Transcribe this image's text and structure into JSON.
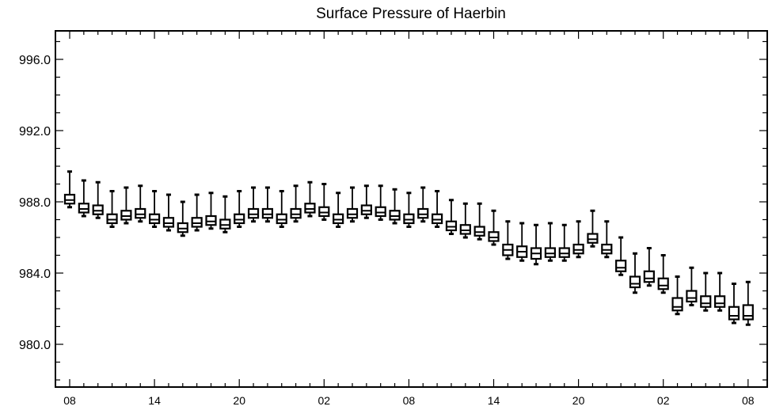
{
  "chart_data": {
    "type": "box",
    "title": "Surface Pressure of Haerbin",
    "xlabel": "",
    "ylabel": "",
    "ylim": [
      977.6,
      997.6
    ],
    "yticks": [
      {
        "value": 980.0,
        "label": "980.0"
      },
      {
        "value": 984.0,
        "label": "984.0"
      },
      {
        "value": 988.0,
        "label": "988.0"
      },
      {
        "value": 992.0,
        "label": "992.0"
      },
      {
        "value": 996.0,
        "label": "996.0"
      }
    ],
    "xticks": [
      {
        "index": 0,
        "label": "08"
      },
      {
        "index": 6,
        "label": "14"
      },
      {
        "index": 12,
        "label": "20"
      },
      {
        "index": 18,
        "label": "02"
      },
      {
        "index": 24,
        "label": "08"
      },
      {
        "index": 30,
        "label": "14"
      },
      {
        "index": 36,
        "label": "20"
      },
      {
        "index": 42,
        "label": "02"
      },
      {
        "index": 48,
        "label": "08"
      }
    ],
    "grid": false,
    "series": [
      {
        "median": [
          988.1,
          987.6,
          987.5,
          987.0,
          987.2,
          987.3,
          987.0,
          986.8,
          986.5,
          986.8,
          986.9,
          986.7,
          987.0,
          987.3,
          987.3,
          987.0,
          987.3,
          987.6,
          987.4,
          987.0,
          987.3,
          987.5,
          987.4,
          987.2,
          987.0,
          987.3,
          987.0,
          986.6,
          986.4,
          986.3,
          986.0,
          985.3,
          985.2,
          985.1,
          985.1,
          985.1,
          985.3,
          985.9,
          985.3,
          984.3,
          983.4,
          983.7,
          983.3,
          982.1,
          982.6,
          982.3,
          982.3,
          981.6,
          981.6
        ],
        "q1": [
          987.9,
          987.4,
          987.3,
          986.8,
          987.0,
          987.1,
          986.8,
          986.6,
          986.3,
          986.6,
          986.7,
          986.5,
          986.8,
          987.1,
          987.1,
          986.8,
          987.1,
          987.4,
          987.2,
          986.8,
          987.1,
          987.3,
          987.2,
          987.0,
          986.8,
          987.1,
          986.8,
          986.4,
          986.2,
          986.1,
          985.8,
          985.0,
          984.9,
          984.8,
          984.9,
          984.9,
          985.1,
          985.7,
          985.1,
          984.1,
          983.2,
          983.5,
          983.1,
          981.9,
          982.4,
          982.1,
          982.1,
          981.4,
          981.4
        ],
        "q3": [
          988.4,
          987.9,
          987.8,
          987.3,
          987.5,
          987.6,
          987.3,
          987.1,
          986.8,
          987.1,
          987.2,
          987.0,
          987.3,
          987.6,
          987.6,
          987.3,
          987.6,
          987.9,
          987.7,
          987.3,
          987.6,
          987.8,
          987.7,
          987.5,
          987.3,
          987.6,
          987.3,
          986.9,
          986.7,
          986.6,
          986.3,
          985.6,
          985.5,
          985.4,
          985.4,
          985.4,
          985.6,
          986.2,
          985.6,
          984.7,
          983.8,
          984.1,
          983.7,
          982.6,
          983.0,
          982.7,
          982.7,
          982.1,
          982.2
        ],
        "whisker_low": [
          987.7,
          987.2,
          987.1,
          986.6,
          986.8,
          986.9,
          986.6,
          986.4,
          986.1,
          986.4,
          986.5,
          986.3,
          986.6,
          986.9,
          986.9,
          986.6,
          986.9,
          987.2,
          987.0,
          986.6,
          986.9,
          987.1,
          987.0,
          986.8,
          986.6,
          986.9,
          986.6,
          986.2,
          986.0,
          985.9,
          985.6,
          984.8,
          984.7,
          984.5,
          984.7,
          984.7,
          984.9,
          985.5,
          984.9,
          983.9,
          982.9,
          983.3,
          982.9,
          981.7,
          982.2,
          981.9,
          981.9,
          981.2,
          981.1
        ],
        "whisker_high": [
          989.7,
          989.2,
          989.1,
          988.6,
          988.8,
          988.9,
          988.6,
          988.4,
          988.0,
          988.4,
          988.5,
          988.3,
          988.6,
          988.8,
          988.8,
          988.6,
          988.9,
          989.1,
          989.0,
          988.5,
          988.8,
          988.9,
          988.9,
          988.7,
          988.5,
          988.8,
          988.6,
          988.1,
          987.9,
          987.9,
          987.5,
          986.9,
          986.8,
          986.7,
          986.8,
          986.7,
          986.9,
          987.5,
          986.9,
          986.0,
          985.1,
          985.4,
          985.0,
          983.8,
          984.3,
          984.0,
          984.0,
          983.4,
          983.5
        ]
      }
    ],
    "style": {
      "stroke_color": "#000000",
      "box_fill": "#ffffff",
      "background": "#ffffff"
    }
  }
}
